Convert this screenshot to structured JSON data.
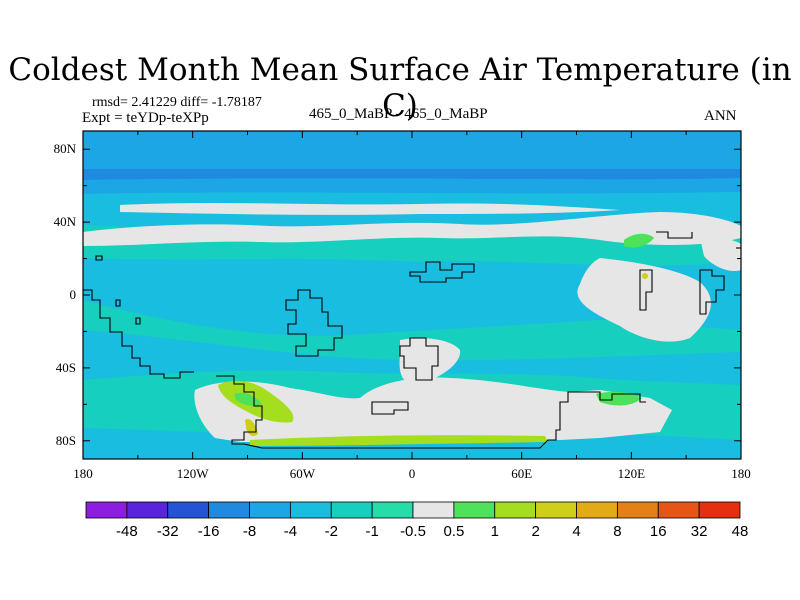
{
  "title": "Coldest Month Mean Surface Air Temperature (in C)",
  "stats_line": "rmsd= 2.41229 diff= -1.78187",
  "experiment_line": "Expt = teYDp-teXPp",
  "center_label": "465_0_MaBP - 465_0_MaBP",
  "season_label": "ANN",
  "chart_data": {
    "type": "heatmap",
    "projection": "cylindrical equidistant (global lon/lat)",
    "x_ticks": [
      "180",
      "120W",
      "60W",
      "0",
      "60E",
      "120E",
      "180"
    ],
    "y_ticks": [
      "80N",
      "40N",
      "0",
      "40S",
      "80S"
    ],
    "xlim": [
      -180,
      180
    ],
    "ylim": [
      -90,
      90
    ],
    "colorbar_levels": [
      "-48",
      "-32",
      "-16",
      "-8",
      "-4",
      "-2",
      "-1",
      "-0.5",
      "0.5",
      "1",
      "2",
      "4",
      "8",
      "16",
      "32",
      "48"
    ],
    "colorbar_colors": [
      "#8e1de2",
      "#5a24dc",
      "#2453d6",
      "#1f8ae0",
      "#1ca6e6",
      "#19bde0",
      "#16cfbf",
      "#26dca8",
      "#e6e6e6",
      "#4ee25a",
      "#a4de1e",
      "#d0cf17",
      "#e2aa17",
      "#e58016",
      "#e75515",
      "#e5300f"
    ],
    "dominant_value_range": "-4 to -0.5",
    "features": [
      {
        "label": "polar band near 62N",
        "value_bin": "-4 to -2"
      },
      {
        "label": "mid-latitude bands",
        "value_bin": "-0.5 to 0.5"
      },
      {
        "label": "western southern landmass",
        "value_bin": "1 to 4"
      },
      {
        "label": "southern coastal strip",
        "value_bin": "1 to 2"
      }
    ]
  }
}
